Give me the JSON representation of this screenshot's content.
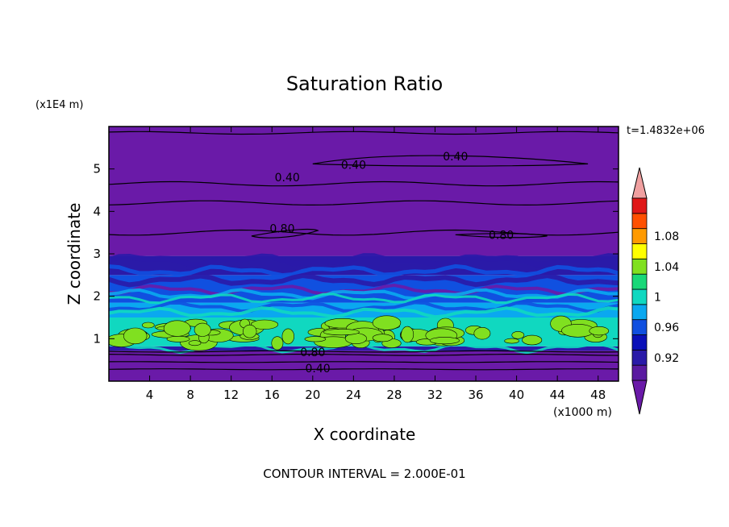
{
  "chart_data": {
    "type": "heatmap",
    "title": "Saturation Ratio",
    "xlabel": "X coordinate",
    "ylabel": "Z coordinate",
    "x_unit": "(x1000 m)",
    "y_unit": "(x1E4 m)",
    "time_label": "t=1.4832e+06",
    "footer": "CONTOUR INTERVAL = 2.000E-01",
    "xlim": [
      0,
      50
    ],
    "ylim": [
      0,
      6
    ],
    "x_ticks": [
      4,
      8,
      12,
      16,
      20,
      24,
      28,
      32,
      36,
      40,
      44,
      48
    ],
    "y_ticks": [
      1,
      2,
      3,
      4,
      5
    ],
    "colorbar": {
      "labels": [
        "0.92",
        "0.96",
        "1",
        "1.04",
        "1.08"
      ],
      "levels": [
        0.9,
        0.92,
        0.94,
        0.96,
        0.98,
        1.0,
        1.02,
        1.04,
        1.06,
        1.08,
        1.1
      ],
      "colors": [
        "#5a1aa0",
        "#2a1aa8",
        "#0a10b8",
        "#1050e0",
        "#0aa8f0",
        "#10d8c0",
        "#18d878",
        "#80e020",
        "#ffff00",
        "#ff9a00",
        "#ff5000",
        "#e01818"
      ],
      "under_color": "#6a1aa8",
      "over_color": "#f0a0a0"
    },
    "bands": [
      {
        "z0": 0.0,
        "z1": 0.72,
        "value_range": "<0.90",
        "color": "#6a1aa8"
      },
      {
        "z0": 0.72,
        "z1": 0.82,
        "value_range": "0.90-0.92",
        "color": "#2a1aa8"
      },
      {
        "z0": 0.82,
        "z1": 1.5,
        "value_range": "0.98-1.02",
        "color": "#10d8c0"
      },
      {
        "z0": 1.5,
        "z1": 1.85,
        "value_range": "0.96-0.98",
        "color": "#0aa8f0"
      },
      {
        "z0": 1.85,
        "z1": 2.5,
        "value_range": "0.92-0.96",
        "color": "#1050e0"
      },
      {
        "z0": 2.5,
        "z1": 2.95,
        "value_range": "0.90-0.92",
        "color": "#2a1aa8"
      },
      {
        "z0": 2.95,
        "z1": 6.0,
        "value_range": "<0.90",
        "color": "#6a1aa8"
      }
    ],
    "contour_labels": [
      {
        "text": "0.40",
        "x": 20.5,
        "z": 0.3
      },
      {
        "text": "0.80",
        "x": 20.0,
        "z": 0.68
      },
      {
        "text": "0.80",
        "x": 17.0,
        "z": 3.6
      },
      {
        "text": "0.80",
        "x": 38.5,
        "z": 3.45
      },
      {
        "text": "0.40",
        "x": 17.5,
        "z": 4.8
      },
      {
        "text": "0.40",
        "x": 24.0,
        "z": 5.1
      },
      {
        "text": "0.40",
        "x": 34.0,
        "z": 5.3
      }
    ]
  }
}
